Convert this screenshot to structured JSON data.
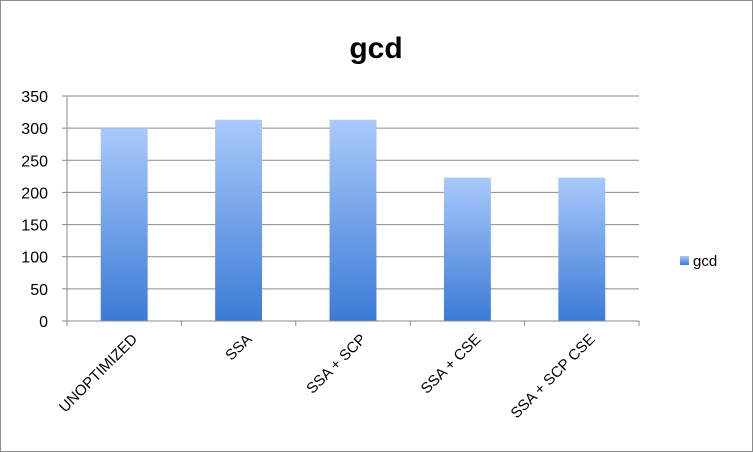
{
  "chart_data": {
    "type": "bar",
    "title": "gcd",
    "categories": [
      "UNOPTIMIZED",
      "SSA",
      "SSA + SCP",
      "SSA + CSE",
      "SSA + SCP CSE"
    ],
    "series": [
      {
        "name": "gcd",
        "values": [
          300,
          313,
          313,
          223,
          223
        ]
      }
    ],
    "ylim": [
      0,
      350
    ],
    "yticks": [
      0,
      50,
      100,
      150,
      200,
      250,
      300,
      350
    ],
    "grid": true,
    "legend": "right",
    "colors": {
      "bar_top": "#a9c9fb",
      "bar_bottom": "#3b7bd6",
      "grid": "#8a8a8a"
    }
  }
}
